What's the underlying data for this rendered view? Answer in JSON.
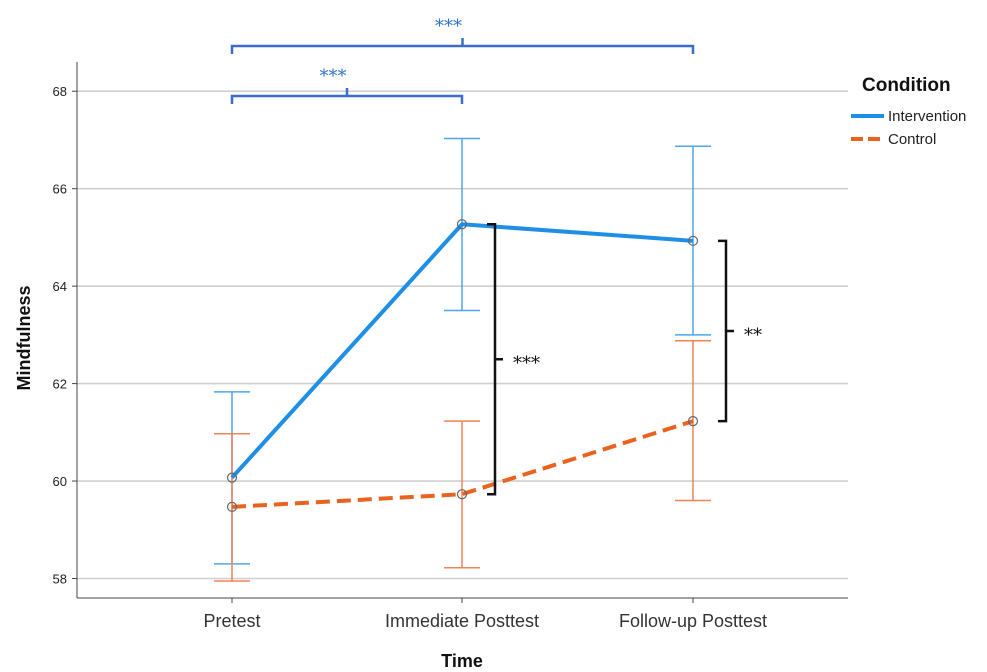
{
  "chart_data": {
    "type": "line",
    "xlabel": "Time",
    "ylabel": "Mindfulness",
    "categories": [
      "Pretest",
      "Immediate Posttest",
      "Follow-up Posttest"
    ],
    "ylim": [
      57.6,
      68.6
    ],
    "yticks": [
      58,
      60,
      62,
      64,
      66,
      68
    ],
    "grid": true,
    "legend": {
      "title": "Condition",
      "position": "top-right"
    },
    "series": [
      {
        "name": "Intervention",
        "color": "#1f8fe6",
        "line_style": "solid",
        "values": [
          60.07,
          65.27,
          64.93
        ],
        "ci_low": [
          58.3,
          63.5,
          63.0
        ],
        "ci_high": [
          61.83,
          67.03,
          66.87
        ]
      },
      {
        "name": "Control",
        "color": "#e8631f",
        "line_style": "dashed",
        "values": [
          59.47,
          59.73,
          61.23
        ],
        "ci_low": [
          57.95,
          58.22,
          59.6
        ],
        "ci_high": [
          60.97,
          61.23,
          62.88
        ]
      }
    ],
    "annotations": {
      "top_brackets": [
        {
          "from": "Pretest",
          "to": "Immediate Posttest",
          "label": "***"
        },
        {
          "from": "Pretest",
          "to": "Follow-up Posttest",
          "label": "***"
        }
      ],
      "side_brackets": [
        {
          "at": "Immediate Posttest",
          "label": "***"
        },
        {
          "at": "Follow-up Posttest",
          "label": "**"
        }
      ]
    }
  }
}
